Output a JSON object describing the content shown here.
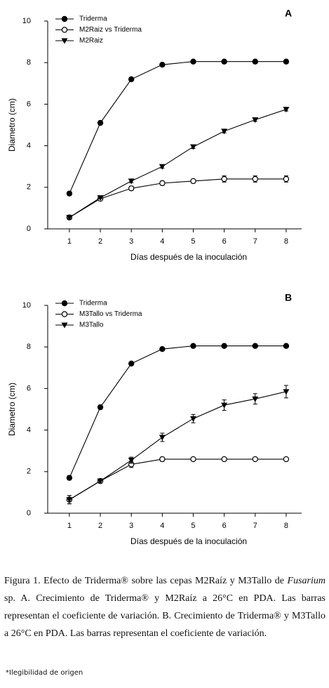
{
  "chart_data": [
    {
      "type": "line",
      "panel": "A",
      "x": [
        1,
        2,
        3,
        4,
        5,
        6,
        7,
        8
      ],
      "xlim": [
        0.3,
        8.5
      ],
      "xticks": [
        1,
        2,
        3,
        4,
        5,
        6,
        7,
        8
      ],
      "ylim": [
        0,
        10
      ],
      "yticks": [
        0,
        2,
        4,
        6,
        8,
        10
      ],
      "xlabel": "Días después de la inoculación",
      "ylabel": "Diametro (cm)",
      "series": [
        {
          "name": "Triderma",
          "color": "#000000",
          "marker": "circle-filled",
          "values": [
            1.7,
            5.1,
            7.2,
            7.9,
            8.05,
            8.05,
            8.05,
            8.05
          ],
          "errors": [
            0.1,
            0.1,
            0.05,
            0.05,
            0.05,
            0.05,
            0.05,
            0.05
          ]
        },
        {
          "name": "M2Raiz vs Triderma",
          "color": "#000000",
          "marker": "circle-open",
          "values": [
            0.55,
            1.45,
            1.95,
            2.2,
            2.3,
            2.4,
            2.4,
            2.4
          ],
          "errors": [
            0.1,
            0.1,
            0.1,
            0.1,
            0.1,
            0.15,
            0.15,
            0.15
          ]
        },
        {
          "name": "M2Raiz",
          "color": "#000000",
          "marker": "triangle-down",
          "values": [
            0.55,
            1.5,
            2.3,
            3.0,
            3.95,
            4.7,
            5.25,
            5.75
          ],
          "errors": [
            0.05,
            0.05,
            0.08,
            0.08,
            0.08,
            0.08,
            0.08,
            0.08
          ]
        }
      ]
    },
    {
      "type": "line",
      "panel": "B",
      "x": [
        1,
        2,
        3,
        4,
        5,
        6,
        7,
        8
      ],
      "xlim": [
        0.3,
        8.5
      ],
      "xticks": [
        1,
        2,
        3,
        4,
        5,
        6,
        7,
        8
      ],
      "ylim": [
        0,
        10
      ],
      "yticks": [
        0,
        2,
        4,
        6,
        8,
        10
      ],
      "xlabel": "Días después de la inoculación",
      "ylabel": "Diametro (cm)",
      "series": [
        {
          "name": "Triderma",
          "color": "#000000",
          "marker": "circle-filled",
          "values": [
            1.7,
            5.1,
            7.2,
            7.9,
            8.05,
            8.05,
            8.05,
            8.05
          ],
          "errors": [
            0.1,
            0.1,
            0.05,
            0.05,
            0.05,
            0.05,
            0.05,
            0.05
          ]
        },
        {
          "name": "M3Tallo vs Triderma",
          "color": "#000000",
          "marker": "circle-open",
          "values": [
            0.65,
            1.55,
            2.35,
            2.6,
            2.6,
            2.6,
            2.6,
            2.6
          ],
          "errors": [
            0.2,
            0.1,
            0.15,
            0.1,
            0.08,
            0.08,
            0.08,
            0.08
          ]
        },
        {
          "name": "M3Tallo",
          "color": "#000000",
          "marker": "triangle-down",
          "values": [
            0.65,
            1.55,
            2.55,
            3.65,
            4.55,
            5.2,
            5.5,
            5.85
          ],
          "errors": [
            0.2,
            0.1,
            0.15,
            0.2,
            0.2,
            0.25,
            0.25,
            0.3
          ]
        }
      ]
    }
  ],
  "caption": {
    "before": "Figura 1. Efecto de Triderma® sobre las cepas M2Raíz y M3Tallo de ",
    "italic": "Fusarium",
    "after": " sp. A. Crecimiento de Triderma® y M2Raíz a 26°C en PDA. Las barras representan el coeficiente de variación. B. Crecimiento de Triderma® y M3Tallo a 26°C en PDA. Las barras representan el coeficiente de variación."
  },
  "footnote": "*Ilegibilidad de origen"
}
